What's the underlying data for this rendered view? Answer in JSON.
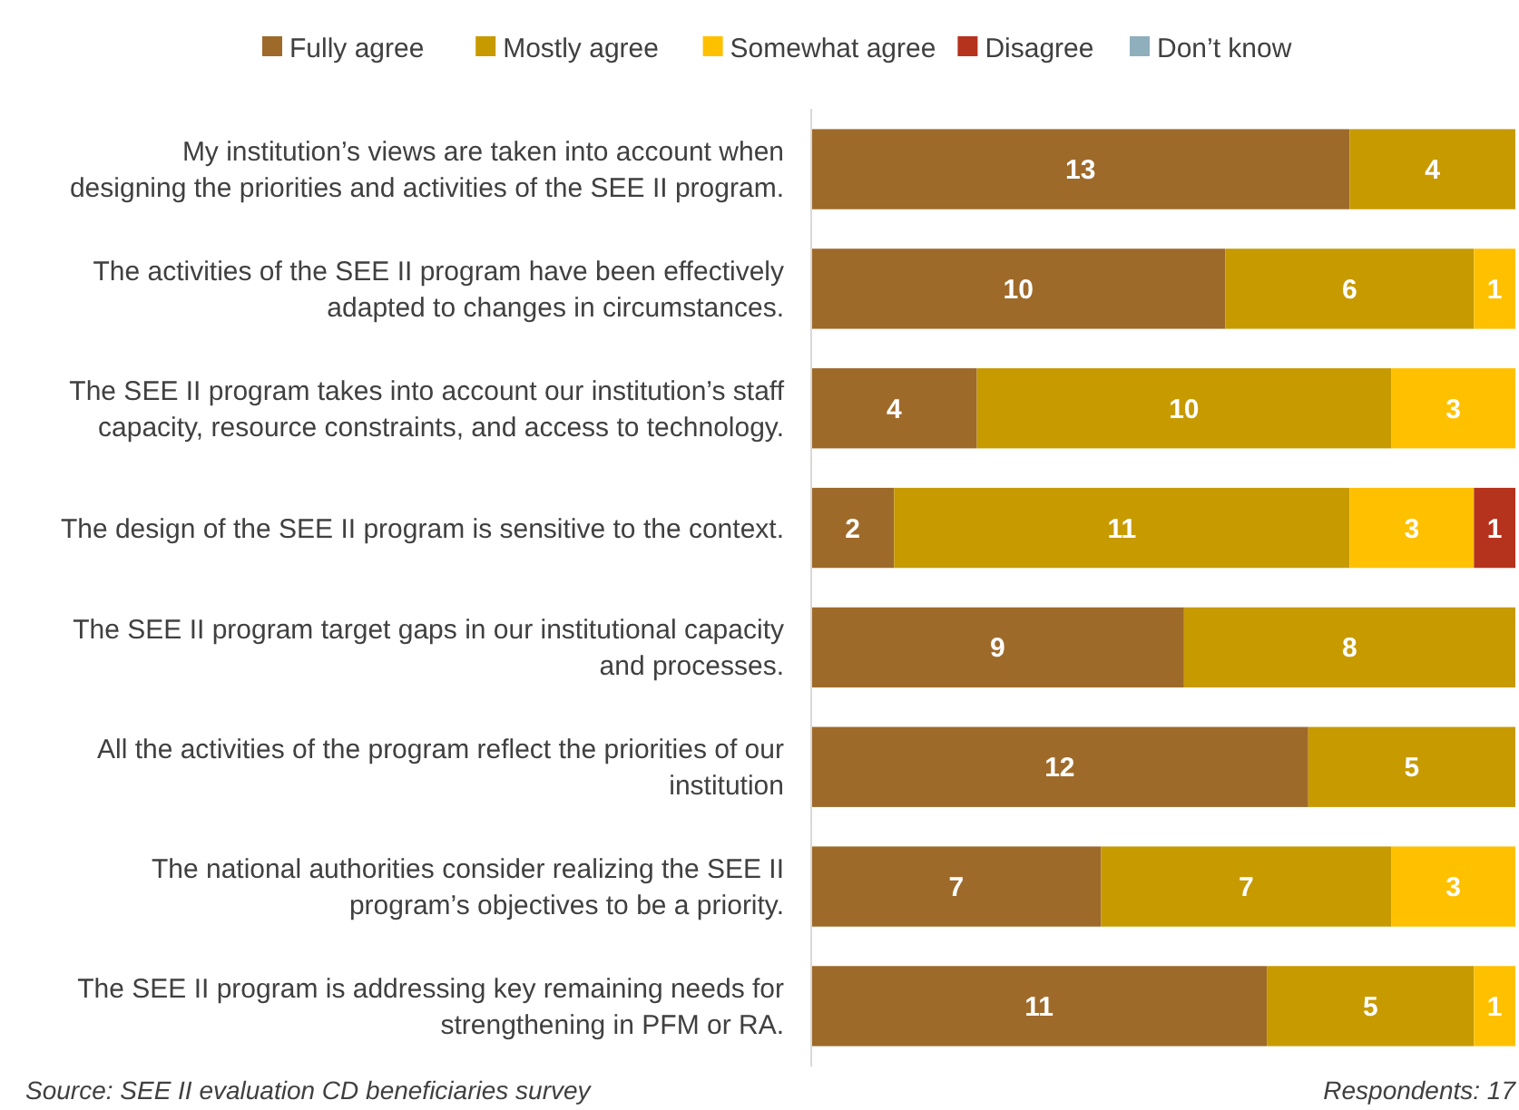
{
  "chart_data": {
    "type": "bar",
    "orientation": "horizontal",
    "stacked": true,
    "data_labels": true,
    "legend": "top",
    "tick_labels": "y",
    "xlim": [
      0,
      17
    ],
    "categories": [
      "My institution’s views are taken into account when\ndesigning the priorities and activities of the SEE II program.",
      "The activities of the SEE II program have been effectively\nadapted to changes in circumstances.",
      "The SEE II program takes into account our institution’s staff\ncapacity, resource constraints, and access to technology.",
      "The design of the SEE II program is sensitive to the context.",
      "The SEE II program target gaps in our institutional capacity\nand processes.",
      "All the activities of the program reflect the priorities of our\ninstitution",
      "The national authorities consider realizing the SEE II\nprogram’s objectives to be a priority.",
      "The SEE II program is addressing key remaining needs for\nstrengthening in PFM or RA."
    ],
    "series": [
      {
        "name": "Fully agree",
        "color": "#9e6a2a",
        "values": [
          13,
          10,
          4,
          2,
          9,
          12,
          7,
          11
        ]
      },
      {
        "name": "Mostly agree",
        "color": "#c79a00",
        "values": [
          4,
          6,
          10,
          11,
          8,
          5,
          7,
          5
        ]
      },
      {
        "name": "Somewhat agree",
        "color": "#ffc000",
        "values": [
          null,
          1,
          3,
          3,
          null,
          null,
          3,
          1
        ]
      },
      {
        "name": "Disagree",
        "color": "#b5321c",
        "values": [
          null,
          null,
          null,
          1,
          null,
          null,
          null,
          null
        ]
      },
      {
        "name": "Don’t know",
        "color": "#8fafbd",
        "values": [
          null,
          null,
          null,
          null,
          null,
          null,
          null,
          null
        ]
      }
    ],
    "annotations": [
      "Source: SEE II evaluation CD beneficiaries survey",
      "Respondents: 17"
    ]
  }
}
